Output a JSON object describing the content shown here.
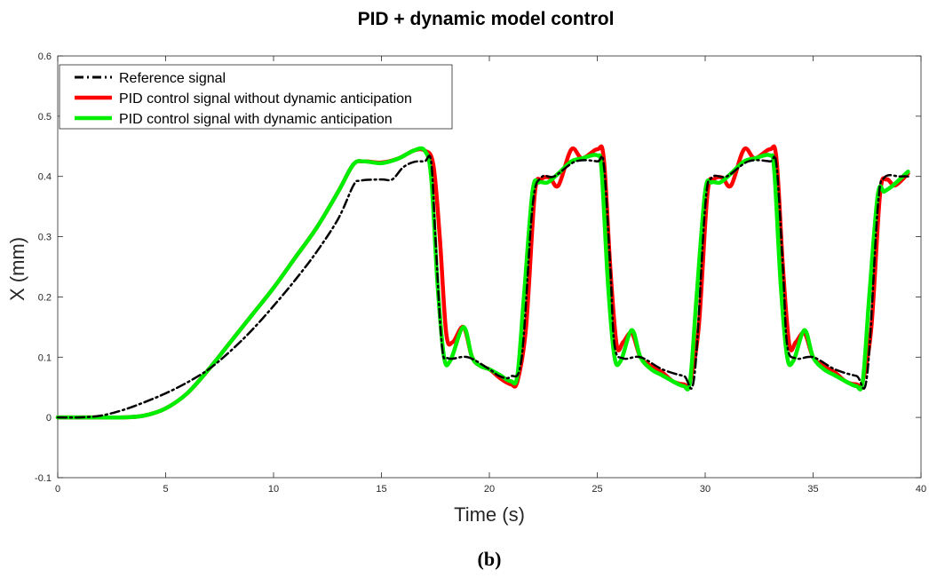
{
  "chart_data": {
    "type": "line",
    "title": "PID + dynamic model control",
    "xlabel": "Time (s)",
    "ylabel": "X (mm)",
    "xlim": [
      0,
      40
    ],
    "ylim": [
      -0.1,
      0.6
    ],
    "xticks": [
      0,
      5,
      10,
      15,
      20,
      25,
      30,
      35,
      40
    ],
    "yticks": [
      -0.1,
      0,
      0.1,
      0.2,
      0.3,
      0.4,
      0.5,
      0.6
    ],
    "grid": false,
    "legend_position": "top-left",
    "series": [
      {
        "name": "Reference signal",
        "color": "#000000",
        "line_style": "dash-dot",
        "x": [
          0,
          1,
          2,
          3,
          4,
          5,
          6,
          7,
          8,
          9,
          10,
          11,
          12,
          13,
          13.7,
          14,
          15,
          15.5,
          16,
          16.5,
          17,
          17.3,
          17.5,
          17.8,
          18.1,
          19,
          20,
          20.5,
          21,
          21.5,
          22,
          22.4,
          23,
          24,
          25,
          25.3,
          25.6,
          25.8,
          26.2,
          27,
          28,
          29,
          29.5,
          30,
          30.3,
          31,
          32,
          33,
          33.3,
          33.6,
          33.8,
          34.2,
          35,
          36,
          37,
          37.5,
          38,
          38.3,
          39,
          39.4
        ],
        "y": [
          0,
          0,
          0.003,
          0.012,
          0.025,
          0.04,
          0.058,
          0.08,
          0.11,
          0.145,
          0.185,
          0.228,
          0.275,
          0.33,
          0.385,
          0.393,
          0.395,
          0.395,
          0.415,
          0.424,
          0.425,
          0.425,
          0.3,
          0.12,
          0.098,
          0.1,
          0.08,
          0.068,
          0.068,
          0.1,
          0.35,
          0.398,
          0.4,
          0.425,
          0.425,
          0.42,
          0.25,
          0.12,
          0.098,
          0.1,
          0.08,
          0.069,
          0.069,
          0.35,
          0.398,
          0.4,
          0.425,
          0.425,
          0.42,
          0.25,
          0.12,
          0.098,
          0.1,
          0.08,
          0.069,
          0.069,
          0.35,
          0.398,
          0.4,
          0.4
        ]
      },
      {
        "name": "PID control signal without dynamic anticipation",
        "color": "#ff0000",
        "line_style": "solid",
        "x": [
          0,
          2,
          3,
          4,
          5,
          6,
          7,
          8,
          9,
          10,
          11,
          12,
          13,
          13.7,
          14.2,
          15,
          15.8,
          16.5,
          17,
          17.4,
          17.7,
          18,
          18.3,
          18.8,
          19.2,
          19.6,
          20,
          20.5,
          21,
          21.3,
          21.7,
          22.1,
          22.4,
          22.8,
          23.2,
          23.8,
          24.3,
          25,
          25.3,
          25.6,
          25.9,
          26.2,
          26.6,
          27,
          27.5,
          28,
          28.5,
          29,
          29.3,
          29.7,
          30.1,
          30.4,
          30.8,
          31.2,
          31.8,
          32.3,
          33,
          33.3,
          33.6,
          33.9,
          34.2,
          34.6,
          35,
          35.5,
          36,
          36.5,
          37,
          37.3,
          37.7,
          38.1,
          38.4,
          38.8,
          39.4
        ],
        "y": [
          0,
          0,
          0,
          0.003,
          0.015,
          0.04,
          0.08,
          0.125,
          0.17,
          0.215,
          0.265,
          0.315,
          0.375,
          0.42,
          0.425,
          0.423,
          0.43,
          0.443,
          0.443,
          0.42,
          0.3,
          0.14,
          0.125,
          0.15,
          0.1,
          0.085,
          0.08,
          0.065,
          0.055,
          0.06,
          0.15,
          0.37,
          0.395,
          0.398,
          0.385,
          0.445,
          0.43,
          0.445,
          0.43,
          0.25,
          0.12,
          0.125,
          0.14,
          0.1,
          0.085,
          0.075,
          0.06,
          0.055,
          0.06,
          0.15,
          0.37,
          0.395,
          0.398,
          0.385,
          0.445,
          0.43,
          0.445,
          0.43,
          0.25,
          0.12,
          0.125,
          0.14,
          0.1,
          0.085,
          0.075,
          0.06,
          0.055,
          0.06,
          0.15,
          0.37,
          0.395,
          0.385,
          0.405
        ]
      },
      {
        "name": "PID control signal with dynamic anticipation",
        "color": "#00ee00",
        "line_style": "solid",
        "x": [
          0,
          2,
          3,
          4,
          5,
          6,
          7,
          8,
          9,
          10,
          11,
          12,
          13,
          13.7,
          14.2,
          15,
          15.8,
          16.5,
          17,
          17.3,
          17.6,
          17.9,
          18.2,
          18.8,
          19.2,
          19.6,
          20,
          20.5,
          21,
          21.3,
          21.6,
          22,
          22.3,
          22.7,
          23.2,
          23.8,
          24.3,
          25,
          25.2,
          25.5,
          25.8,
          26.1,
          26.6,
          27,
          27.5,
          28,
          28.5,
          29,
          29.3,
          29.6,
          30,
          30.3,
          30.7,
          31.2,
          31.8,
          32.3,
          33,
          33.2,
          33.5,
          33.8,
          34.1,
          34.6,
          35,
          35.5,
          36,
          36.5,
          37,
          37.3,
          37.6,
          38,
          38.3,
          38.7,
          39.4
        ],
        "y": [
          0,
          0,
          0,
          0.003,
          0.015,
          0.04,
          0.08,
          0.125,
          0.17,
          0.215,
          0.265,
          0.315,
          0.375,
          0.42,
          0.425,
          0.422,
          0.43,
          0.443,
          0.443,
          0.4,
          0.22,
          0.1,
          0.095,
          0.15,
          0.1,
          0.085,
          0.08,
          0.07,
          0.06,
          0.07,
          0.2,
          0.375,
          0.39,
          0.39,
          0.405,
          0.425,
          0.43,
          0.435,
          0.41,
          0.22,
          0.1,
          0.095,
          0.145,
          0.1,
          0.08,
          0.07,
          0.06,
          0.052,
          0.06,
          0.2,
          0.375,
          0.39,
          0.39,
          0.405,
          0.425,
          0.43,
          0.435,
          0.41,
          0.22,
          0.1,
          0.095,
          0.145,
          0.1,
          0.08,
          0.07,
          0.06,
          0.052,
          0.06,
          0.2,
          0.37,
          0.375,
          0.385,
          0.408
        ]
      }
    ],
    "caption": "(b)"
  },
  "colors": {
    "background": "#ffffff",
    "axis": "#262626",
    "legend_border": "#262626"
  }
}
